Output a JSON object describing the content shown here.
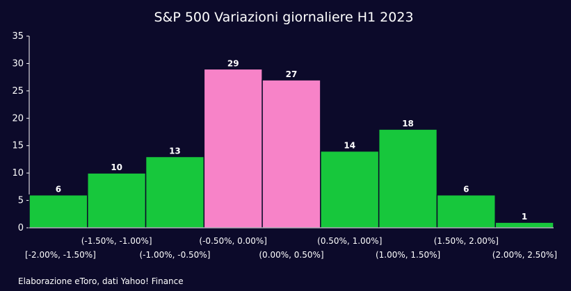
{
  "chart_data": {
    "type": "bar",
    "title": "S&P 500 Variazioni giornaliere H1 2023",
    "categories": [
      "[-2.00%, -1.50%]",
      "(-1.50%, -1.00%]",
      "(-1.00%, -0.50%]",
      "(-0.50%, 0.00%]",
      "(0.00%, 0.50%]",
      "(0.50%, 1.00%]",
      "(1.00%, 1.50%]",
      "(1.50%, 2.00%]",
      "(2.00%, 2.50%]"
    ],
    "values": [
      6,
      10,
      13,
      29,
      27,
      14,
      18,
      6,
      1
    ],
    "bar_colors": [
      "#17c73c",
      "#17c73c",
      "#17c73c",
      "#f783c8",
      "#f783c8",
      "#17c73c",
      "#17c73c",
      "#17c73c",
      "#17c73c"
    ],
    "ylim": [
      0,
      35
    ],
    "yticks": [
      "0",
      "5",
      "10",
      "15",
      "20",
      "25",
      "30",
      "35"
    ],
    "xlabel": "",
    "ylabel": "",
    "grid": false,
    "legend": "none"
  },
  "footer": {
    "source": "Elaborazione eToro, dati Yahoo! Finance"
  }
}
